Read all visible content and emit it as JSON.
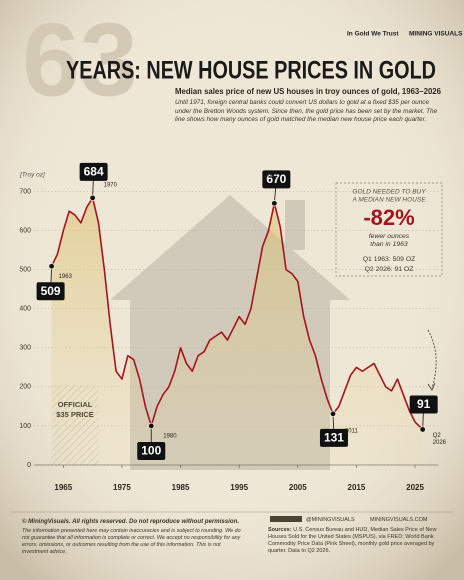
{
  "watermark": "63",
  "logos": [
    "In Gold We Trust",
    "MINING VISUALS"
  ],
  "chart_data": {
    "type": "line",
    "title": "YEARS: NEW HOUSE PRICES IN GOLD",
    "subtitle": "Median sales price of new US houses in troy ounces of gold, 1963–2026",
    "description": "Until 1971, foreign central banks could convert US dollars to gold at a fixed $35 per ounce under the Bretton Woods system. Since then, the gold price has been set by the market. The line shows how many ounces of gold matched the median new house price each quarter.",
    "y_axis_label": "[Troy oz]",
    "x": [
      1963,
      1964,
      1965,
      1966,
      1967,
      1968,
      1969,
      1970,
      1971,
      1972,
      1973,
      1974,
      1975,
      1976,
      1977,
      1978,
      1979,
      1980,
      1981,
      1982,
      1983,
      1984,
      1985,
      1986,
      1987,
      1988,
      1989,
      1990,
      1991,
      1992,
      1993,
      1994,
      1995,
      1996,
      1997,
      1998,
      1999,
      2000,
      2001,
      2002,
      2003,
      2004,
      2005,
      2006,
      2007,
      2008,
      2009,
      2010,
      2011,
      2012,
      2013,
      2014,
      2015,
      2016,
      2017,
      2018,
      2019,
      2020,
      2021,
      2022,
      2023,
      2024,
      2025,
      2026.3
    ],
    "series": [
      {
        "name": "Ounces of gold",
        "color": "#a5141e",
        "values": [
          509,
          540,
          600,
          650,
          640,
          620,
          660,
          684,
          620,
          500,
          360,
          240,
          220,
          280,
          270,
          220,
          150,
          100,
          150,
          180,
          200,
          240,
          300,
          260,
          240,
          280,
          290,
          320,
          330,
          340,
          320,
          350,
          380,
          360,
          400,
          480,
          560,
          600,
          670,
          610,
          500,
          490,
          470,
          380,
          320,
          280,
          220,
          170,
          131,
          150,
          190,
          230,
          250,
          240,
          250,
          260,
          230,
          200,
          190,
          220,
          180,
          140,
          110,
          91
        ]
      }
    ],
    "xlim": [
      1960,
      2029
    ],
    "ylim": [
      0,
      740
    ],
    "xticks": [
      1965,
      1975,
      1985,
      1995,
      2005,
      2015,
      2025
    ],
    "yticks": [
      0,
      100,
      200,
      300,
      400,
      500,
      600,
      700
    ],
    "grid": true,
    "shaded_region": {
      "x": [
        1963,
        1971
      ],
      "label": [
        "OFFICIAL",
        "$35 PRICE"
      ]
    },
    "annotations": [
      {
        "x": 1963,
        "value": 509,
        "label": [
          "1963"
        ]
      },
      {
        "x": 1970,
        "value": 684,
        "label": [
          "1970"
        ]
      },
      {
        "x": 1980,
        "value": 100,
        "label": [
          "1980"
        ]
      },
      {
        "x": 2001,
        "value": 670,
        "label": [
          "2001"
        ]
      },
      {
        "x": 2011,
        "value": 131,
        "label": [
          "2011"
        ]
      },
      {
        "x": 2026.3,
        "value": 91,
        "label": [
          "Q2",
          "2026"
        ]
      }
    ],
    "callout": {
      "title": [
        "GOLD NEEDED TO BUY",
        "A MEDIAN NEW HOUSE"
      ],
      "value": "-82%",
      "note": [
        "fewer ounces",
        "than in 1963"
      ],
      "details": [
        "Q1 1963: 509 OZ",
        "Q2 2026: 91 OZ"
      ]
    }
  },
  "footer": {
    "copyright": "© MiningVisuals. All rights reserved. Do not reproduce without permission.",
    "disclaimer": "The information presented here may contain inaccuracies and is subject to rounding. We do not guarantee that all information is complete or correct. We accept no responsibility for any errors, omissions, or outcomes resulting from the use of this information. This is not investment advice.",
    "social": "@MININGVISUALS",
    "website": "MININGVISUALS.COM",
    "sources_label": "Sources:",
    "sources": "U.S. Census Bureau and HUD, Median Sales Price of New Houses Sold for the United States (MSPUS), via FRED; World Bank Commodity Price Data (Pink Sheet), monthly gold price averaged by quarter. Data to Q2 2026."
  }
}
